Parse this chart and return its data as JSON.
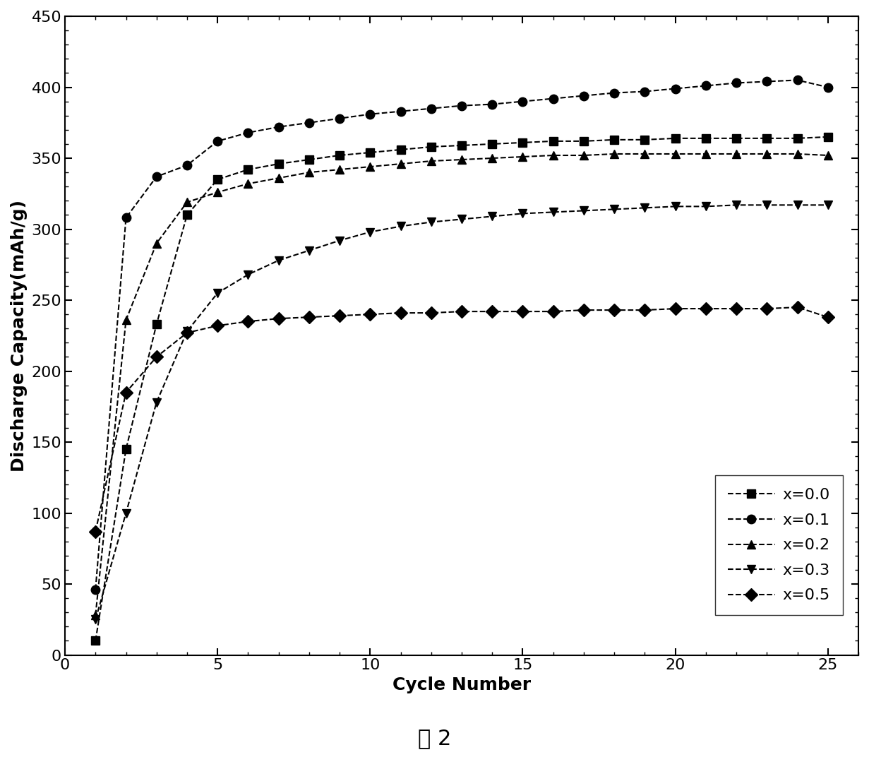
{
  "title": "",
  "xlabel": "Cycle Number",
  "ylabel": "Discharge Capacity(mAh/g)",
  "caption": "图 2",
  "xlim": [
    0,
    26
  ],
  "ylim": [
    0,
    450
  ],
  "xticks": [
    0,
    5,
    10,
    15,
    20,
    25
  ],
  "yticks": [
    0,
    50,
    100,
    150,
    200,
    250,
    300,
    350,
    400,
    450
  ],
  "series": [
    {
      "label": "x=0.0",
      "marker": "s",
      "x": [
        1,
        2,
        3,
        4,
        5,
        6,
        7,
        8,
        9,
        10,
        11,
        12,
        13,
        14,
        15,
        16,
        17,
        18,
        19,
        20,
        21,
        22,
        23,
        24,
        25
      ],
      "y": [
        10,
        145,
        233,
        310,
        335,
        342,
        346,
        349,
        352,
        354,
        356,
        358,
        359,
        360,
        361,
        362,
        362,
        363,
        363,
        364,
        364,
        364,
        364,
        364,
        365
      ]
    },
    {
      "label": "x=0.1",
      "marker": "o",
      "x": [
        1,
        2,
        3,
        4,
        5,
        6,
        7,
        8,
        9,
        10,
        11,
        12,
        13,
        14,
        15,
        16,
        17,
        18,
        19,
        20,
        21,
        22,
        23,
        24,
        25
      ],
      "y": [
        46,
        308,
        337,
        345,
        362,
        368,
        372,
        375,
        378,
        381,
        383,
        385,
        387,
        388,
        390,
        392,
        394,
        396,
        397,
        399,
        401,
        403,
        404,
        405,
        400
      ]
    },
    {
      "label": "x=0.2",
      "marker": "^",
      "x": [
        1,
        2,
        3,
        4,
        5,
        6,
        7,
        8,
        9,
        10,
        11,
        12,
        13,
        14,
        15,
        16,
        17,
        18,
        19,
        20,
        21,
        22,
        23,
        24,
        25
      ],
      "y": [
        28,
        236,
        290,
        319,
        326,
        332,
        336,
        340,
        342,
        344,
        346,
        348,
        349,
        350,
        351,
        352,
        352,
        353,
        353,
        353,
        353,
        353,
        353,
        353,
        352
      ]
    },
    {
      "label": "x=0.3",
      "marker": "v",
      "x": [
        1,
        2,
        3,
        4,
        5,
        6,
        7,
        8,
        9,
        10,
        11,
        12,
        13,
        14,
        15,
        16,
        17,
        18,
        19,
        20,
        21,
        22,
        23,
        24,
        25
      ],
      "y": [
        25,
        100,
        178,
        228,
        255,
        268,
        278,
        285,
        292,
        298,
        302,
        305,
        307,
        309,
        311,
        312,
        313,
        314,
        315,
        316,
        316,
        317,
        317,
        317,
        317
      ]
    },
    {
      "label": "x=0.5",
      "marker": "D",
      "x": [
        1,
        2,
        3,
        4,
        5,
        6,
        7,
        8,
        9,
        10,
        11,
        12,
        13,
        14,
        15,
        16,
        17,
        18,
        19,
        20,
        21,
        22,
        23,
        24,
        25
      ],
      "y": [
        87,
        185,
        210,
        227,
        232,
        235,
        237,
        238,
        239,
        240,
        241,
        241,
        242,
        242,
        242,
        242,
        243,
        243,
        243,
        244,
        244,
        244,
        244,
        245,
        238
      ]
    }
  ],
  "color": "black",
  "linestyle": "--",
  "linewidth": 1.5,
  "markersize": 9,
  "legend_fontsize": 16,
  "axis_fontsize": 18,
  "tick_fontsize": 16,
  "caption_fontsize": 22
}
